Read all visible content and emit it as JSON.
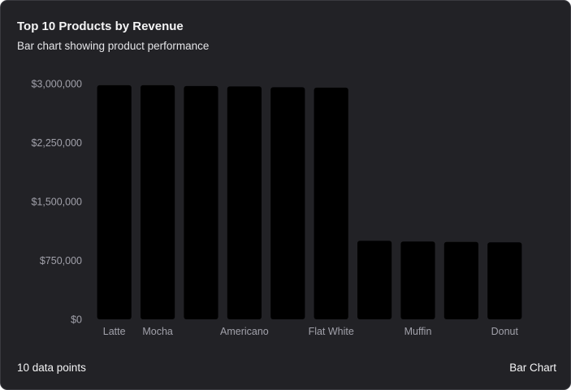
{
  "card": {
    "title": "Top 10 Products by Revenue",
    "subtitle": "Bar chart showing product performance",
    "footer_left": "10 data points",
    "footer_right": "Bar Chart"
  },
  "colors": {
    "background": "#222226",
    "bar": "#000000",
    "tick_text": "#a1a1aa",
    "title_text": "#f4f4f5"
  },
  "chart_data": {
    "type": "bar",
    "title": "Top 10 Products by Revenue",
    "subtitle": "Bar chart showing product performance",
    "xlabel": "",
    "ylabel": "",
    "ylim": [
      0,
      3000000
    ],
    "yticks": [
      0,
      750000,
      1500000,
      2250000,
      3000000
    ],
    "ytick_labels": [
      "$0",
      "$750,000",
      "$1,500,000",
      "$2,250,000",
      "$3,000,000"
    ],
    "categories": [
      "Latte",
      "Mocha",
      "",
      "Americano",
      "",
      "Flat White",
      "",
      "Muffin",
      "",
      "Donut"
    ],
    "values": [
      2980000,
      2980000,
      2970000,
      2965000,
      2955000,
      2950000,
      1000000,
      990000,
      985000,
      980000
    ],
    "grid": false,
    "legend": "none"
  }
}
